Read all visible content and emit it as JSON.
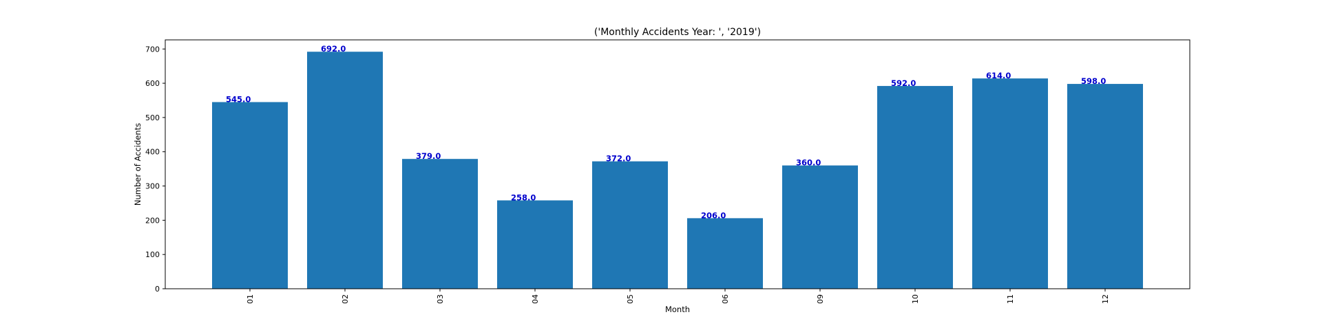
{
  "chart_data": {
    "type": "bar",
    "title": "('Monthly Accidents Year: ', '2019')",
    "xlabel": "Month",
    "ylabel": "Number of Accidents",
    "categories": [
      "01",
      "02",
      "03",
      "04",
      "05",
      "06",
      "09",
      "10",
      "11",
      "12"
    ],
    "values": [
      545.0,
      692.0,
      379.0,
      258.0,
      372.0,
      206.0,
      360.0,
      592.0,
      614.0,
      598.0
    ],
    "data_labels": [
      "545.0",
      "692.0",
      "379.0",
      "258.0",
      "372.0",
      "206.0",
      "360.0",
      "592.0",
      "614.0",
      "598.0"
    ],
    "ylim": [
      0,
      726.6
    ],
    "yticks": [
      0,
      100,
      200,
      300,
      400,
      500,
      600,
      700
    ],
    "ytick_labels": [
      "0",
      "100",
      "200",
      "300",
      "400",
      "500",
      "600",
      "700"
    ],
    "xtick_rotation": "vertical",
    "grid": false,
    "legend": "none",
    "colors": {
      "bar": "#1f77b4",
      "data_label": "#0000cd",
      "axis": "#000000"
    }
  }
}
